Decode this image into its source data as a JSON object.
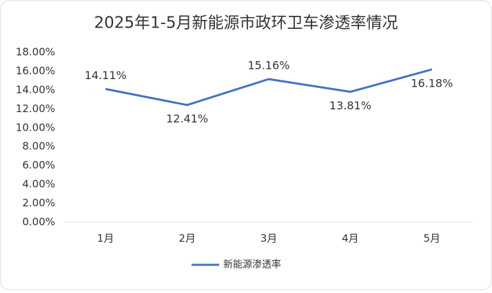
{
  "chart_data": {
    "type": "line",
    "title": "2025年1-5月新能源市政环卫车渗透率情况",
    "categories": [
      "1月",
      "2月",
      "3月",
      "4月",
      "5月"
    ],
    "series": [
      {
        "name": "新能源渗透率",
        "color": "#4472c4",
        "values": [
          14.11,
          12.41,
          15.16,
          13.81,
          16.18
        ],
        "value_labels": [
          "14.11%",
          "12.41%",
          "15.16%",
          "13.81%",
          "16.18%"
        ]
      }
    ],
    "ylim": [
      0,
      18
    ],
    "yticks": [
      {
        "value": 0,
        "label": "0.00%"
      },
      {
        "value": 2,
        "label": "2.00%"
      },
      {
        "value": 4,
        "label": "4.00%"
      },
      {
        "value": 6,
        "label": "6.00%"
      },
      {
        "value": 8,
        "label": "8.00%"
      },
      {
        "value": 10,
        "label": "10.00%"
      },
      {
        "value": 12,
        "label": "12.00%"
      },
      {
        "value": 14,
        "label": "14.00%"
      },
      {
        "value": 16,
        "label": "16.00%"
      },
      {
        "value": 18,
        "label": "18.00%"
      }
    ],
    "legend": "bottom",
    "grid": false
  }
}
